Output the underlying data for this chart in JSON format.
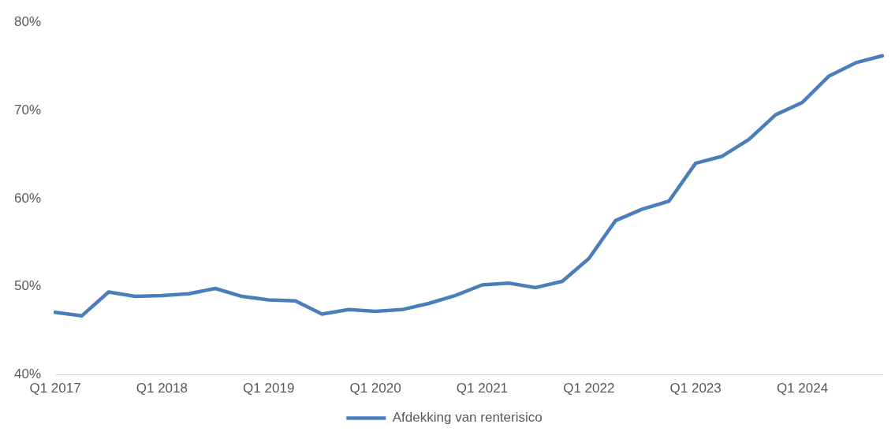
{
  "chart_data": {
    "type": "line",
    "categories": [
      "Q1 2017",
      null,
      null,
      null,
      "Q1 2018",
      null,
      null,
      null,
      "Q1 2019",
      null,
      null,
      null,
      "Q1 2020",
      null,
      null,
      null,
      "Q1 2021",
      null,
      null,
      null,
      "Q1 2022",
      null,
      null,
      null,
      "Q1 2023",
      null,
      null,
      null,
      "Q1 2024",
      null,
      null,
      null
    ],
    "series": [
      {
        "name": "Afdekking van renterisico",
        "color": "#4a7ebb",
        "values": [
          47.1,
          46.7,
          49.4,
          48.9,
          49.0,
          49.2,
          49.8,
          48.9,
          48.5,
          48.4,
          46.9,
          47.4,
          47.2,
          47.4,
          48.1,
          49.0,
          50.2,
          50.4,
          49.9,
          50.6,
          53.2,
          57.5,
          58.8,
          59.7,
          64.0,
          64.8,
          66.7,
          69.5,
          70.9,
          73.9,
          75.4,
          76.2
        ]
      }
    ],
    "ylim": [
      40,
      80
    ],
    "yticks": [
      {
        "value": 40,
        "label": "40%"
      },
      {
        "value": 50,
        "label": "50%"
      },
      {
        "value": 60,
        "label": "60%"
      },
      {
        "value": 70,
        "label": "70%"
      },
      {
        "value": 80,
        "label": "80%"
      }
    ],
    "legend": "bottom",
    "marker": "none",
    "line_style": "solid"
  }
}
